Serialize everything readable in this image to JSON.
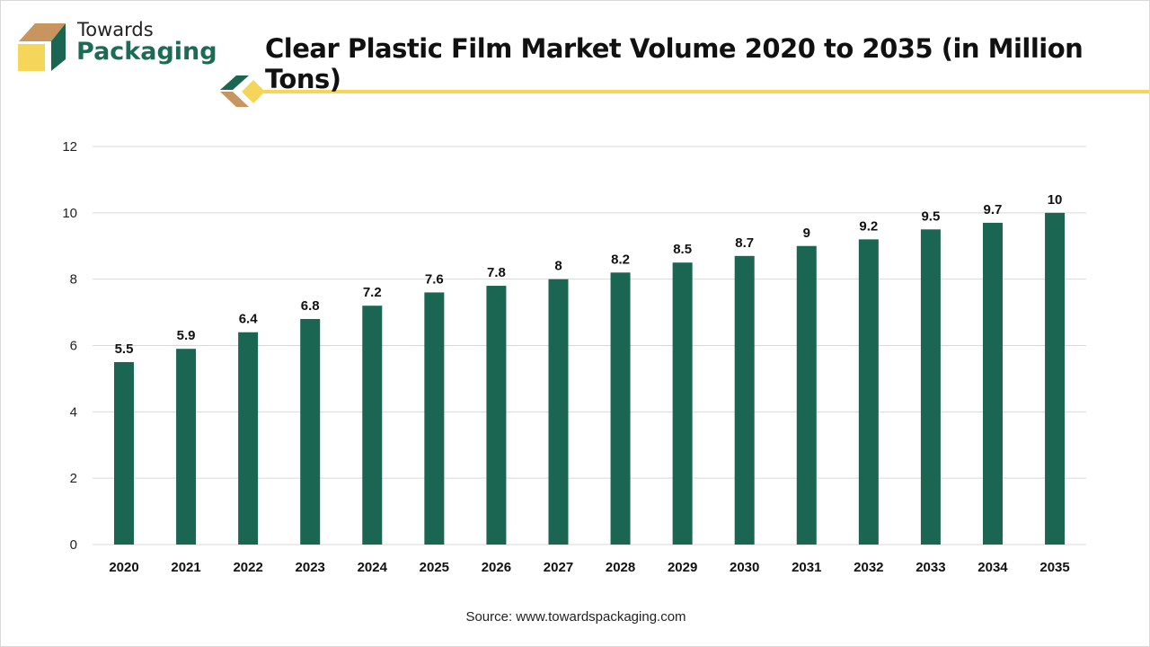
{
  "logo": {
    "line1": "Towards",
    "line2": "Packaging"
  },
  "source": "Source: www.towardspackaging.com",
  "colors": {
    "bar": "#1a6652",
    "accent": "#f5d65a",
    "brown": "#c8955f",
    "grid": "#d9d9d9"
  },
  "chart_data": {
    "type": "bar",
    "title": "Clear Plastic Film Market Volume 2020 to 2035 (in Million Tons)",
    "categories": [
      "2020",
      "2021",
      "2022",
      "2023",
      "2024",
      "2025",
      "2026",
      "2027",
      "2028",
      "2029",
      "2030",
      "2031",
      "2032",
      "2033",
      "2034",
      "2035"
    ],
    "values": [
      5.5,
      5.9,
      6.4,
      6.8,
      7.2,
      7.6,
      7.8,
      8,
      8.2,
      8.5,
      8.7,
      9,
      9.2,
      9.5,
      9.7,
      10
    ],
    "ylim": [
      0,
      12
    ],
    "yticks": [
      0,
      2,
      4,
      6,
      8,
      10,
      12
    ],
    "grid": true,
    "xlabel": "",
    "ylabel": ""
  }
}
